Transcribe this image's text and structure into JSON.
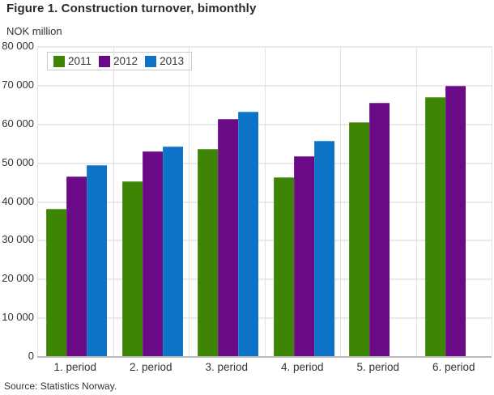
{
  "header": {
    "title": "Figure 1. Construction turnover, bimonthly"
  },
  "chart_data": {
    "type": "bar",
    "title": "Figure 1. Construction turnover, bimonthly",
    "ylabel": "NOK million",
    "xlabel": "",
    "categories": [
      "1. period",
      "2. period",
      "3. period",
      "4. period",
      "5. period",
      "6. period"
    ],
    "series": [
      {
        "name": "2011",
        "color": "#3e8505",
        "values": [
          38000,
          45200,
          53500,
          46100,
          60300,
          66800
        ]
      },
      {
        "name": "2012",
        "color": "#6a0a86",
        "values": [
          46400,
          52900,
          61100,
          51700,
          65400,
          69700
        ]
      },
      {
        "name": "2013",
        "color": "#0d73c6",
        "values": [
          49300,
          54100,
          63100,
          55600,
          null,
          null
        ]
      }
    ],
    "ylim": [
      0,
      80000
    ],
    "ytick_interval": 10000,
    "ytick_labels_top_to_bottom": [
      "80 000",
      "70 000",
      "60 000",
      "50 000",
      "40 000",
      "30 000",
      "20 000",
      "10 000",
      "0"
    ],
    "grid": true,
    "legend_position": "top-left"
  },
  "footer": {
    "source": "Source: Statistics Norway."
  },
  "colors": {
    "background": "#ffffff",
    "grid": "#eaeaea",
    "axis_line": "#b9b9b9",
    "text": "#333333",
    "title_text": "#2b2b2b",
    "series_2011": "#3e8505",
    "series_2012": "#6a0a86",
    "series_2013": "#0d73c6"
  }
}
